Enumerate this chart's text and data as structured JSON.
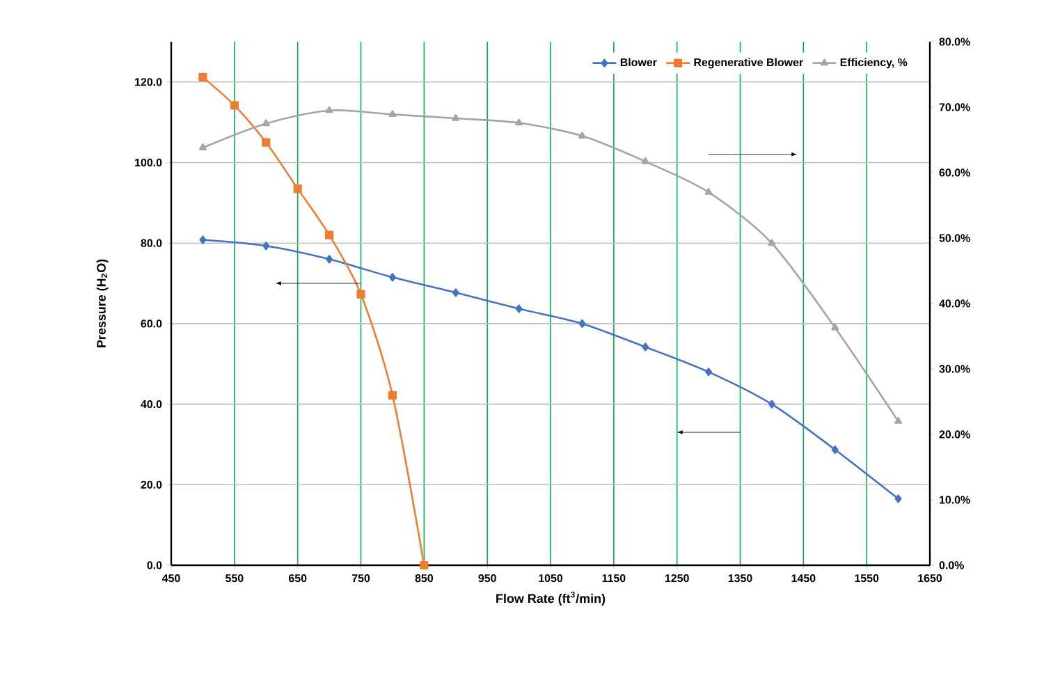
{
  "chart_data": {
    "type": "line",
    "xlabel": "Flow Rate (ft$^{3}$/min)",
    "ylabel": "Pressure (H$_{2}$O)",
    "xlim": [
      450,
      1650
    ],
    "xticks": [
      450,
      550,
      650,
      750,
      850,
      950,
      1050,
      1150,
      1250,
      1350,
      1450,
      1550,
      1650
    ],
    "ylim": [
      0,
      130
    ],
    "yticks": [
      {
        "value": 0,
        "label": "0.0"
      },
      {
        "value": 20,
        "label": "20.0"
      },
      {
        "value": 40,
        "label": "40.0"
      },
      {
        "value": 60,
        "label": "60.0"
      },
      {
        "value": 80,
        "label": "80.0"
      },
      {
        "value": 100,
        "label": "100.0"
      },
      {
        "value": 120,
        "label": "120.0"
      }
    ],
    "y2lim": [
      0,
      80
    ],
    "y2ticks": [
      {
        "value": 0,
        "label": "0.0%"
      },
      {
        "value": 10,
        "label": "10.0%"
      },
      {
        "value": 20,
        "label": "20.0%"
      },
      {
        "value": 30,
        "label": "30.0%"
      },
      {
        "value": 40,
        "label": "40.0%"
      },
      {
        "value": 50,
        "label": "50.0%"
      },
      {
        "value": 60,
        "label": "60.0%"
      },
      {
        "value": 70,
        "label": "70.0%"
      },
      {
        "value": 80,
        "label": "80.0%"
      }
    ],
    "grid": true,
    "legend": "top right",
    "series": [
      {
        "name": "Blower",
        "color": "#4472c4",
        "marker": "diamond",
        "x": [
          500,
          600,
          700,
          800,
          900,
          1000,
          1100,
          1200,
          1300,
          1400,
          1500,
          1600
        ],
        "values": [
          80.8,
          79.3,
          76,
          71.5,
          67.7,
          63.7,
          60,
          54.2,
          48,
          40,
          28.7,
          16.5
        ]
      },
      {
        "name": "Regenerative Blower",
        "color": "#ed7d31",
        "marker": "square",
        "x": [
          500,
          550,
          600,
          650,
          700,
          750,
          800,
          850
        ],
        "values": [
          121.2,
          114.2,
          105,
          93.5,
          82,
          67.3,
          42.2,
          0
        ]
      },
      {
        "name": "Efficiency, %",
        "color": "#a5a5a5",
        "marker": "triangle",
        "axis": "y2",
        "x": [
          500,
          600,
          700,
          800,
          900,
          1000,
          1100,
          1200,
          1300,
          1400,
          1500,
          1600
        ],
        "values": [
          63.8,
          67.5,
          69.5,
          68.9,
          68.3,
          67.6,
          65.6,
          61.7,
          57,
          49.2,
          36.3,
          22
        ]
      }
    ]
  }
}
